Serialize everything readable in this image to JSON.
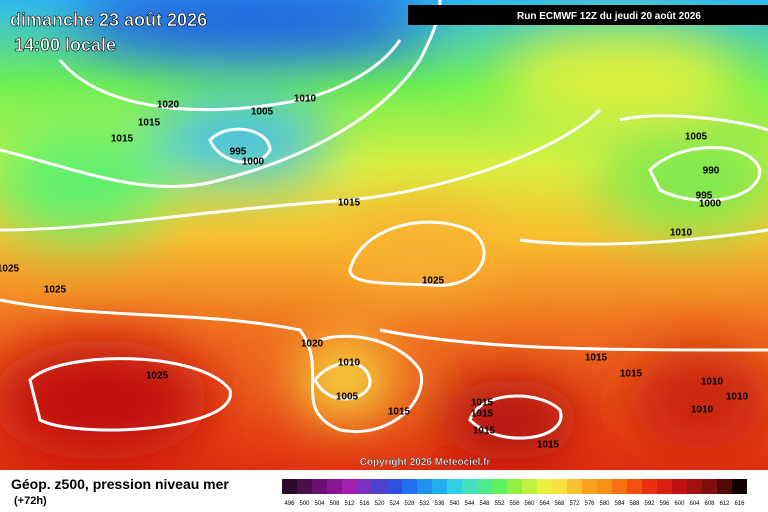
{
  "header": {
    "date": "dimanche 23 août 2026",
    "time": "14:00 locale",
    "run": "Run ECMWF 12Z du jeudi 20 août 2026"
  },
  "map": {
    "copyright": "Copyright 2026 Meteociel.fr",
    "isobar_labels": [
      1020,
      1015,
      1015,
      1005,
      1010,
      995,
      1000,
      1015,
      1025,
      1025,
      1025,
      1020,
      1010,
      1005,
      1025,
      1015,
      1015,
      1015,
      1015,
      1015,
      1015,
      1015,
      1010,
      1010,
      1010,
      1005,
      990,
      995,
      1000,
      1010
    ]
  },
  "legend": {
    "title": "Géop. z500, pression niveau mer",
    "lead": "(+72h)",
    "labels": [
      496,
      500,
      504,
      508,
      512,
      516,
      520,
      524,
      528,
      532,
      536,
      540,
      544,
      548,
      552,
      556,
      560,
      564,
      568,
      572,
      576,
      580,
      584,
      588,
      592,
      596,
      600,
      604,
      608,
      612,
      616
    ],
    "colors": [
      "#2a0a2a",
      "#4a0f4a",
      "#6a1070",
      "#8a1590",
      "#a020b0",
      "#7a30c0",
      "#5040d0",
      "#3050e0",
      "#2070f0",
      "#2090f0",
      "#20b0f0",
      "#30d0e8",
      "#40e0c0",
      "#50e890",
      "#60f060",
      "#90f040",
      "#c0f040",
      "#e8f040",
      "#f8e040",
      "#f8c030",
      "#f8a020",
      "#f89018",
      "#f87010",
      "#f05010",
      "#e83010",
      "#d82010",
      "#c01010",
      "#a01010",
      "#801010",
      "#500808",
      "#100000"
    ]
  }
}
